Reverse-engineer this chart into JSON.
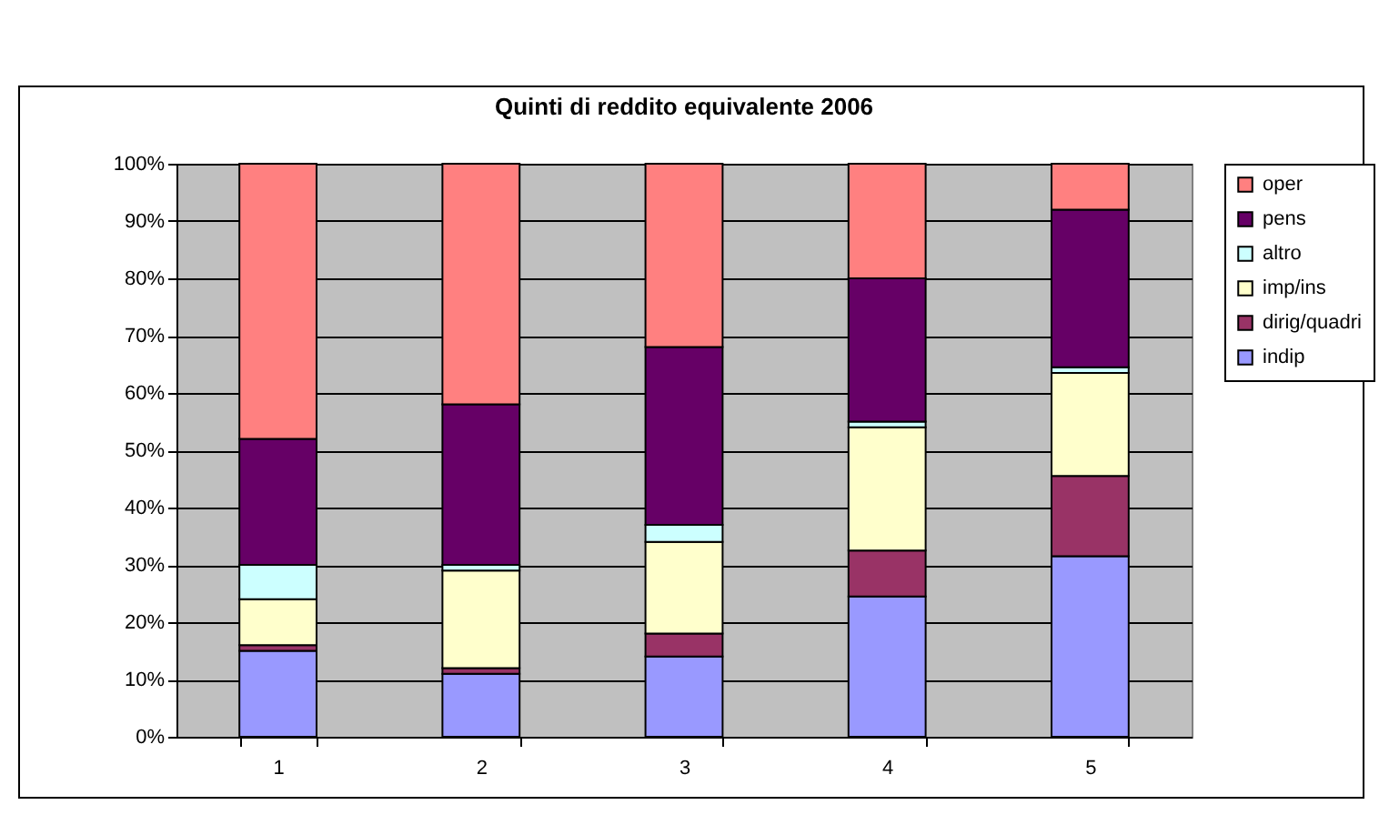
{
  "chart_data": {
    "type": "bar",
    "title": "Quinti di reddito equivalente 2006",
    "stacked": true,
    "categories": [
      "1",
      "2",
      "3",
      "4",
      "5"
    ],
    "series": [
      {
        "name": "indip",
        "color": "#9999ff",
        "values": [
          15,
          11,
          14,
          24.5,
          31.5
        ]
      },
      {
        "name": "dirig/quadri",
        "color": "#993366",
        "values": [
          1,
          1,
          4,
          8,
          14
        ]
      },
      {
        "name": "imp/ins",
        "color": "#ffffcc",
        "values": [
          8,
          17,
          16,
          21.5,
          18
        ]
      },
      {
        "name": "altro",
        "color": "#ccffff",
        "values": [
          6,
          1,
          3,
          1,
          1
        ]
      },
      {
        "name": "pens",
        "color": "#660066",
        "values": [
          22,
          28,
          31,
          25,
          27.5
        ]
      },
      {
        "name": "oper",
        "color": "#ff8080",
        "values": [
          48,
          42,
          32,
          20,
          8
        ]
      }
    ],
    "ylim": [
      0,
      100
    ],
    "yticks": [
      {
        "value": 0,
        "label": "0%"
      },
      {
        "value": 10,
        "label": "10%"
      },
      {
        "value": 20,
        "label": "20%"
      },
      {
        "value": 30,
        "label": "30%"
      },
      {
        "value": 40,
        "label": "40%"
      },
      {
        "value": 50,
        "label": "50%"
      },
      {
        "value": 60,
        "label": "60%"
      },
      {
        "value": 70,
        "label": "70%"
      },
      {
        "value": 80,
        "label": "80%"
      },
      {
        "value": 90,
        "label": "90%"
      },
      {
        "value": 100,
        "label": "100%"
      }
    ],
    "grid": "y",
    "legend": "right"
  }
}
